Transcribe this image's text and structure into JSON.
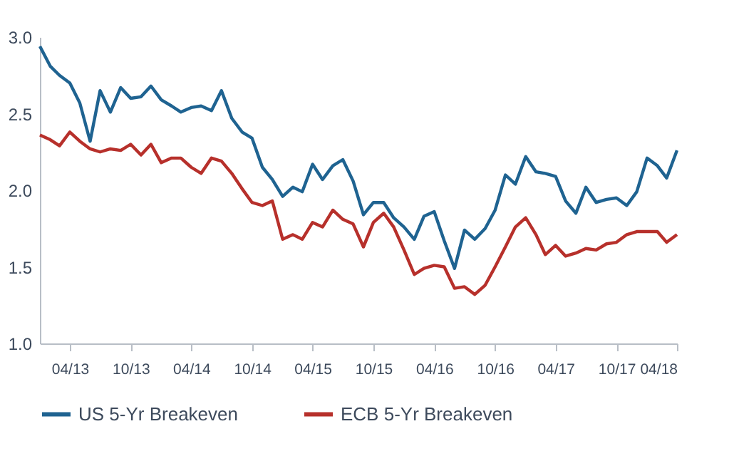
{
  "chart_data": {
    "type": "line",
    "x": [
      "2013-01",
      "2013-02",
      "2013-03",
      "2013-04",
      "2013-05",
      "2013-06",
      "2013-07",
      "2013-08",
      "2013-09",
      "2013-10",
      "2013-11",
      "2013-12",
      "2014-01",
      "2014-02",
      "2014-03",
      "2014-04",
      "2014-05",
      "2014-06",
      "2014-07",
      "2014-08",
      "2014-09",
      "2014-10",
      "2014-11",
      "2014-12",
      "2015-01",
      "2015-02",
      "2015-03",
      "2015-04",
      "2015-05",
      "2015-06",
      "2015-07",
      "2015-08",
      "2015-09",
      "2015-10",
      "2015-11",
      "2015-12",
      "2016-01",
      "2016-02",
      "2016-03",
      "2016-04",
      "2016-05",
      "2016-06",
      "2016-07",
      "2016-08",
      "2016-09",
      "2016-10",
      "2016-11",
      "2016-12",
      "2017-01",
      "2017-02",
      "2017-03",
      "2017-04",
      "2017-05",
      "2017-06",
      "2017-07",
      "2017-08",
      "2017-09",
      "2017-10",
      "2017-11",
      "2017-12",
      "2018-01",
      "2018-02",
      "2018-03",
      "2018-04"
    ],
    "series": [
      {
        "name": "US 5-Yr Breakeven",
        "color": "#1f6391",
        "values": [
          2.94,
          2.81,
          2.75,
          2.7,
          2.57,
          2.32,
          2.65,
          2.51,
          2.67,
          2.6,
          2.61,
          2.68,
          2.59,
          2.55,
          2.51,
          2.54,
          2.55,
          2.52,
          2.65,
          2.47,
          2.38,
          2.34,
          2.15,
          2.07,
          1.96,
          2.02,
          1.99,
          2.17,
          2.07,
          2.16,
          2.2,
          2.06,
          1.84,
          1.92,
          1.92,
          1.82,
          1.76,
          1.68,
          1.83,
          1.86,
          1.67,
          1.49,
          1.74,
          1.68,
          1.75,
          1.87,
          2.1,
          2.04,
          2.22,
          2.12,
          2.11,
          2.09,
          1.93,
          1.85,
          2.02,
          1.92,
          1.94,
          1.95,
          1.9,
          1.99,
          2.21,
          2.16,
          2.08,
          2.26
        ]
      },
      {
        "name": "ECB 5-Yr Breakeven",
        "color": "#b7302b",
        "values": [
          2.36,
          2.33,
          2.29,
          2.38,
          2.32,
          2.27,
          2.25,
          2.27,
          2.26,
          2.3,
          2.23,
          2.3,
          2.18,
          2.21,
          2.21,
          2.15,
          2.11,
          2.21,
          2.19,
          2.11,
          2.01,
          1.92,
          1.9,
          1.93,
          1.68,
          1.71,
          1.68,
          1.79,
          1.76,
          1.87,
          1.81,
          1.78,
          1.63,
          1.79,
          1.85,
          1.76,
          1.61,
          1.45,
          1.49,
          1.51,
          1.5,
          1.36,
          1.37,
          1.32,
          1.38,
          1.5,
          1.63,
          1.76,
          1.82,
          1.71,
          1.58,
          1.64,
          1.57,
          1.59,
          1.62,
          1.61,
          1.65,
          1.66,
          1.71,
          1.73,
          1.73,
          1.73,
          1.66,
          1.71
        ]
      }
    ],
    "xlim": [
      "2013-01",
      "2018-04"
    ],
    "xticks": [
      {
        "value": "2013-04",
        "label": "04/13"
      },
      {
        "value": "2013-10",
        "label": "10/13"
      },
      {
        "value": "2014-04",
        "label": "04/14"
      },
      {
        "value": "2014-10",
        "label": "10/14"
      },
      {
        "value": "2015-04",
        "label": "04/15"
      },
      {
        "value": "2015-10",
        "label": "10/15"
      },
      {
        "value": "2016-04",
        "label": "04/16"
      },
      {
        "value": "2016-10",
        "label": "10/16"
      },
      {
        "value": "2017-04",
        "label": "04/17"
      },
      {
        "value": "2017-10",
        "label": "10/17"
      },
      {
        "value": "2018-04",
        "label": "04/18"
      }
    ],
    "ylim": [
      1.0,
      3.0
    ],
    "yticks": [
      {
        "value": 1.0,
        "label": "1.0"
      },
      {
        "value": 1.5,
        "label": "1.5"
      },
      {
        "value": 2.0,
        "label": "2.0"
      },
      {
        "value": 2.5,
        "label": "2.5"
      },
      {
        "value": 3.0,
        "label": "3.0"
      }
    ],
    "grid": false,
    "legend": "bottom",
    "marker": "none",
    "line_style": "solid"
  }
}
